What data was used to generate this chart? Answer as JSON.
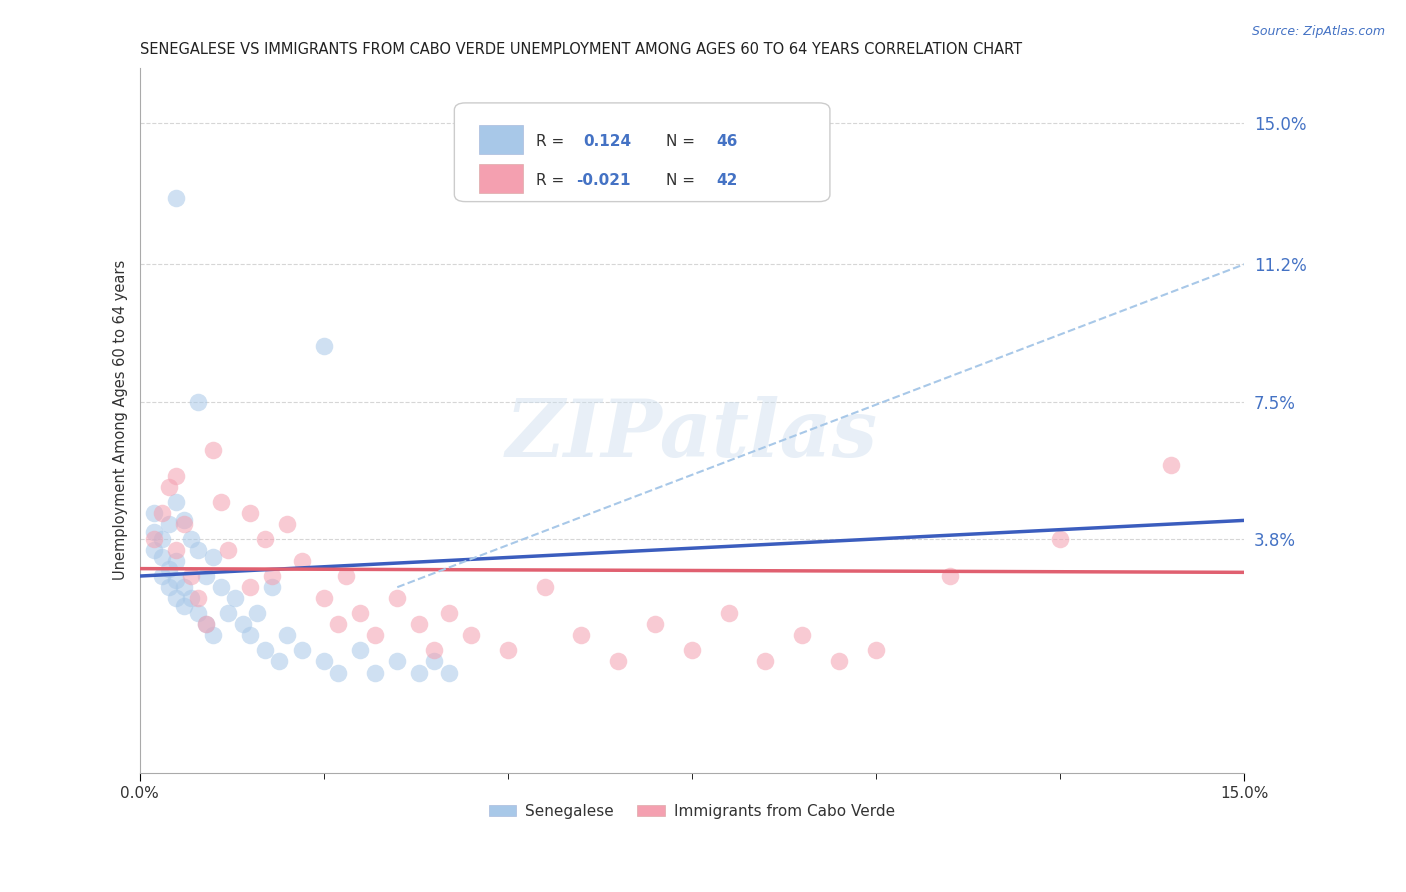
{
  "title": "SENEGALESE VS IMMIGRANTS FROM CABO VERDE UNEMPLOYMENT AMONG AGES 60 TO 64 YEARS CORRELATION CHART",
  "source_text": "Source: ZipAtlas.com",
  "ylabel": "Unemployment Among Ages 60 to 64 years",
  "xlim": [
    0.0,
    0.15
  ],
  "ylim": [
    -0.025,
    0.165
  ],
  "ytick_vals": [
    0.038,
    0.075,
    0.112,
    0.15
  ],
  "ytick_labels": [
    "3.8%",
    "7.5%",
    "11.2%",
    "15.0%"
  ],
  "xtick_vals": [
    0.0,
    0.15
  ],
  "xtick_labels": [
    "0.0%",
    "15.0%"
  ],
  "legend_r1": "R =  0.124",
  "legend_n1": "N = 46",
  "legend_r2": "R = -0.021",
  "legend_n2": "N = 42",
  "color_blue": "#A8C8E8",
  "color_pink": "#F4A0B0",
  "line_blue": "#3B5DBE",
  "line_pink": "#E06070",
  "dashed_color": "#A8C8E8",
  "text_blue": "#4472C4",
  "text_dark": "#333333",
  "background_color": "#FFFFFF",
  "grid_color": "#CCCCCC",
  "watermark": "ZIPatlas",
  "legend_label1": "Senegalese",
  "legend_label2": "Immigrants from Cabo Verde",
  "blue_line_x": [
    0.0,
    0.455
  ],
  "blue_line_y": [
    0.028,
    0.073
  ],
  "pink_line_x": [
    0.0,
    0.15
  ],
  "pink_line_y": [
    0.03,
    0.029
  ],
  "dash_line_x": [
    0.0,
    0.15
  ],
  "dash_line_y": [
    0.0,
    0.115
  ],
  "senegalese_x": [
    0.002,
    0.002,
    0.002,
    0.003,
    0.003,
    0.003,
    0.004,
    0.004,
    0.004,
    0.005,
    0.005,
    0.005,
    0.005,
    0.006,
    0.006,
    0.006,
    0.007,
    0.007,
    0.008,
    0.008,
    0.009,
    0.009,
    0.01,
    0.01,
    0.011,
    0.012,
    0.013,
    0.014,
    0.015,
    0.016,
    0.017,
    0.018,
    0.019,
    0.02,
    0.022,
    0.025,
    0.027,
    0.03,
    0.032,
    0.035,
    0.038,
    0.04,
    0.042,
    0.005,
    0.025,
    0.008
  ],
  "senegalese_y": [
    0.035,
    0.04,
    0.045,
    0.028,
    0.033,
    0.038,
    0.025,
    0.03,
    0.042,
    0.022,
    0.027,
    0.032,
    0.048,
    0.02,
    0.025,
    0.043,
    0.022,
    0.038,
    0.018,
    0.035,
    0.015,
    0.028,
    0.012,
    0.033,
    0.025,
    0.018,
    0.022,
    0.015,
    0.012,
    0.018,
    0.008,
    0.025,
    0.005,
    0.012,
    0.008,
    0.005,
    0.002,
    0.008,
    0.002,
    0.005,
    0.002,
    0.005,
    0.002,
    0.13,
    0.09,
    0.075
  ],
  "caboverde_x": [
    0.002,
    0.003,
    0.004,
    0.005,
    0.005,
    0.006,
    0.007,
    0.008,
    0.009,
    0.01,
    0.011,
    0.012,
    0.015,
    0.015,
    0.017,
    0.018,
    0.02,
    0.022,
    0.025,
    0.027,
    0.028,
    0.03,
    0.032,
    0.035,
    0.038,
    0.04,
    0.042,
    0.045,
    0.05,
    0.055,
    0.06,
    0.065,
    0.07,
    0.075,
    0.08,
    0.085,
    0.09,
    0.095,
    0.1,
    0.11,
    0.125,
    0.14
  ],
  "caboverde_y": [
    0.038,
    0.045,
    0.052,
    0.035,
    0.055,
    0.042,
    0.028,
    0.022,
    0.015,
    0.062,
    0.048,
    0.035,
    0.025,
    0.045,
    0.038,
    0.028,
    0.042,
    0.032,
    0.022,
    0.015,
    0.028,
    0.018,
    0.012,
    0.022,
    0.015,
    0.008,
    0.018,
    0.012,
    0.008,
    0.025,
    0.012,
    0.005,
    0.015,
    0.008,
    0.018,
    0.005,
    0.012,
    0.005,
    0.008,
    0.028,
    0.038,
    0.058
  ]
}
